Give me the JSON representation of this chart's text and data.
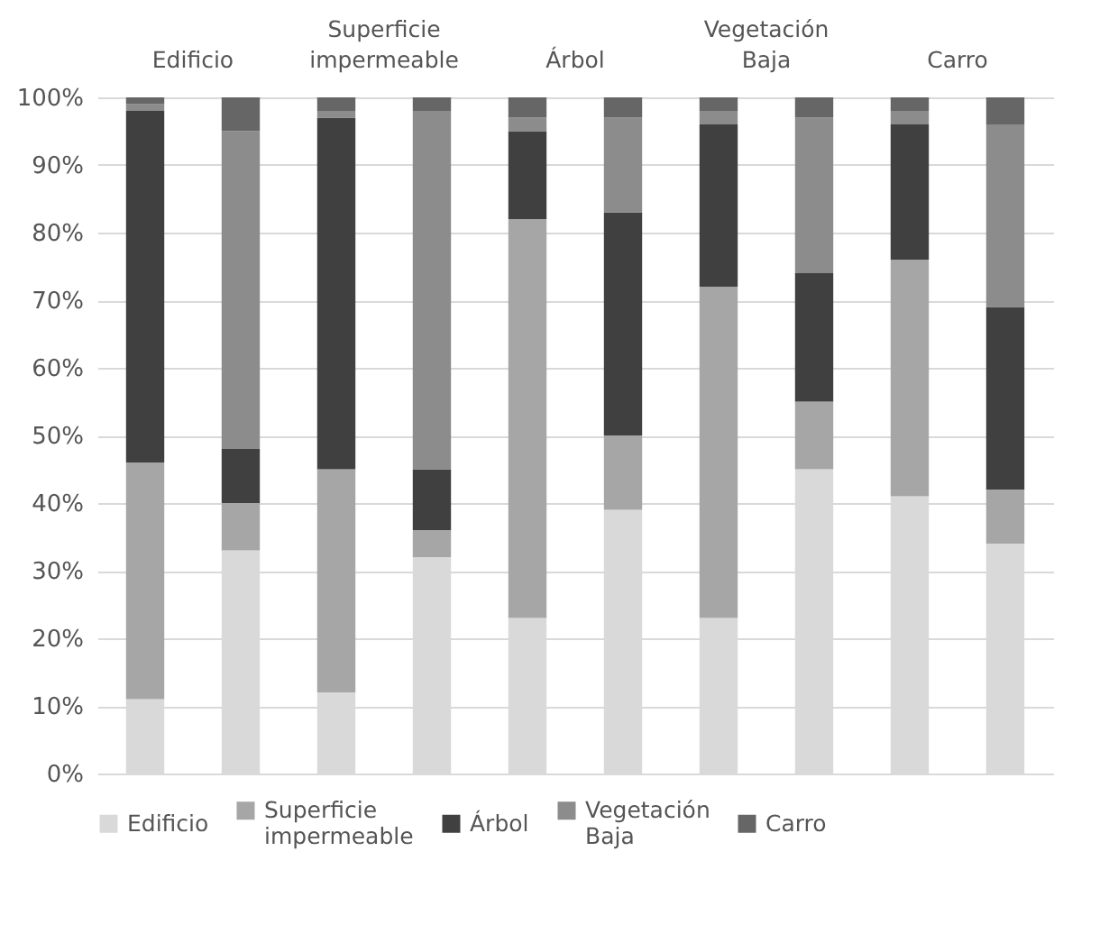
{
  "chart_data": {
    "type": "bar",
    "stacked": true,
    "categories": [
      "Edificio",
      null,
      "Superficie impermeable",
      null,
      "Árbol",
      null,
      "Vegetación Baja",
      null,
      "Carro",
      null
    ],
    "series": [
      {
        "name": "Edificio",
        "color": "#d9d9d9",
        "values": [
          11,
          33,
          12,
          32,
          23,
          39,
          23,
          45,
          41,
          34
        ]
      },
      {
        "name": "Superficie impermeable",
        "color": "#a6a6a6",
        "values": [
          35,
          7,
          33,
          4,
          59,
          11,
          49,
          10,
          35,
          8
        ]
      },
      {
        "name": "Árbol",
        "color": "#404040",
        "values": [
          52,
          8,
          52,
          9,
          13,
          33,
          24,
          19,
          20,
          27
        ]
      },
      {
        "name": "Vegetación Baja",
        "color": "#8c8c8c",
        "values": [
          1,
          47,
          1,
          53,
          2,
          14,
          2,
          23,
          2,
          27
        ]
      },
      {
        "name": "Carro",
        "color": "#666666",
        "values": [
          1,
          5,
          2,
          2,
          3,
          3,
          2,
          3,
          2,
          4
        ]
      }
    ],
    "ylim": [
      0,
      100
    ],
    "yticks": [
      {
        "value": 0,
        "label": "0%"
      },
      {
        "value": 10,
        "label": "10%"
      },
      {
        "value": 20,
        "label": "20%"
      },
      {
        "value": 30,
        "label": "30%"
      },
      {
        "value": 40,
        "label": "40%"
      },
      {
        "value": 50,
        "label": "50%"
      },
      {
        "value": 60,
        "label": "60%"
      },
      {
        "value": 70,
        "label": "70%"
      },
      {
        "value": 80,
        "label": "80%"
      },
      {
        "value": 90,
        "label": "90%"
      },
      {
        "value": 100,
        "label": "100%"
      }
    ],
    "grid": "y",
    "legend": "bottom"
  }
}
